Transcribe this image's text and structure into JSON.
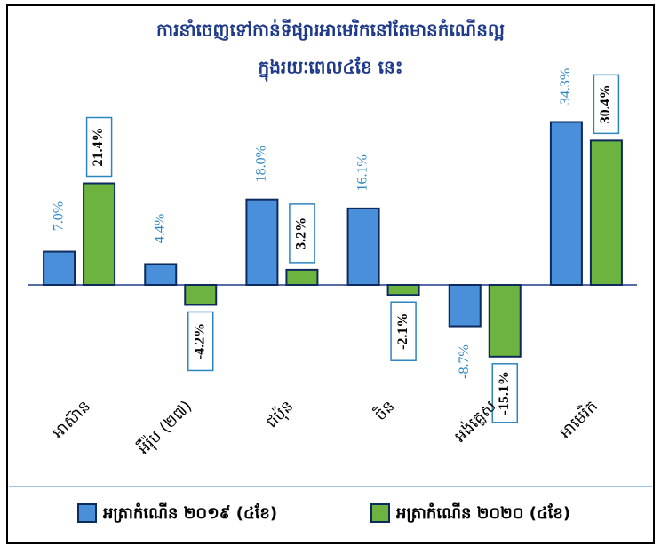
{
  "chart_data": {
    "type": "bar",
    "title": [
      "ការនាំចេញទៅកាន់ទីផ្សារអាមេរិកនៅតែមានកំណើនល្អ",
      "ក្នុងរយៈពេល៤ខែ នេះ"
    ],
    "categories": [
      "អាស៊ាន",
      "អឺរ៉ុប (២៧)",
      "ជប៉ុន",
      "ចិន",
      "អង់គ្លេស",
      "អាមេរិក"
    ],
    "series": [
      {
        "name": "អត្រាកំណើន ២០១៩ (៤ខែ)",
        "color": "#4a8fd9",
        "values": [
          7.0,
          4.4,
          18.0,
          16.1,
          -8.7,
          34.3
        ],
        "value_labels": [
          "7.0%",
          "4.4%",
          "18.0%",
          "16.1%",
          "-8.7%",
          "34.3%"
        ]
      },
      {
        "name": "អត្រាកំណើន ២០២០ (៤ខែ)",
        "color": "#6db33f",
        "values": [
          21.4,
          -4.2,
          3.2,
          -2.1,
          -15.1,
          30.4
        ],
        "value_labels": [
          "21.4%",
          "-4.2%",
          "3.2%",
          "-2.1%",
          "-15.1%",
          "30.4%"
        ]
      }
    ],
    "ylim": [
      -20,
      40
    ]
  }
}
